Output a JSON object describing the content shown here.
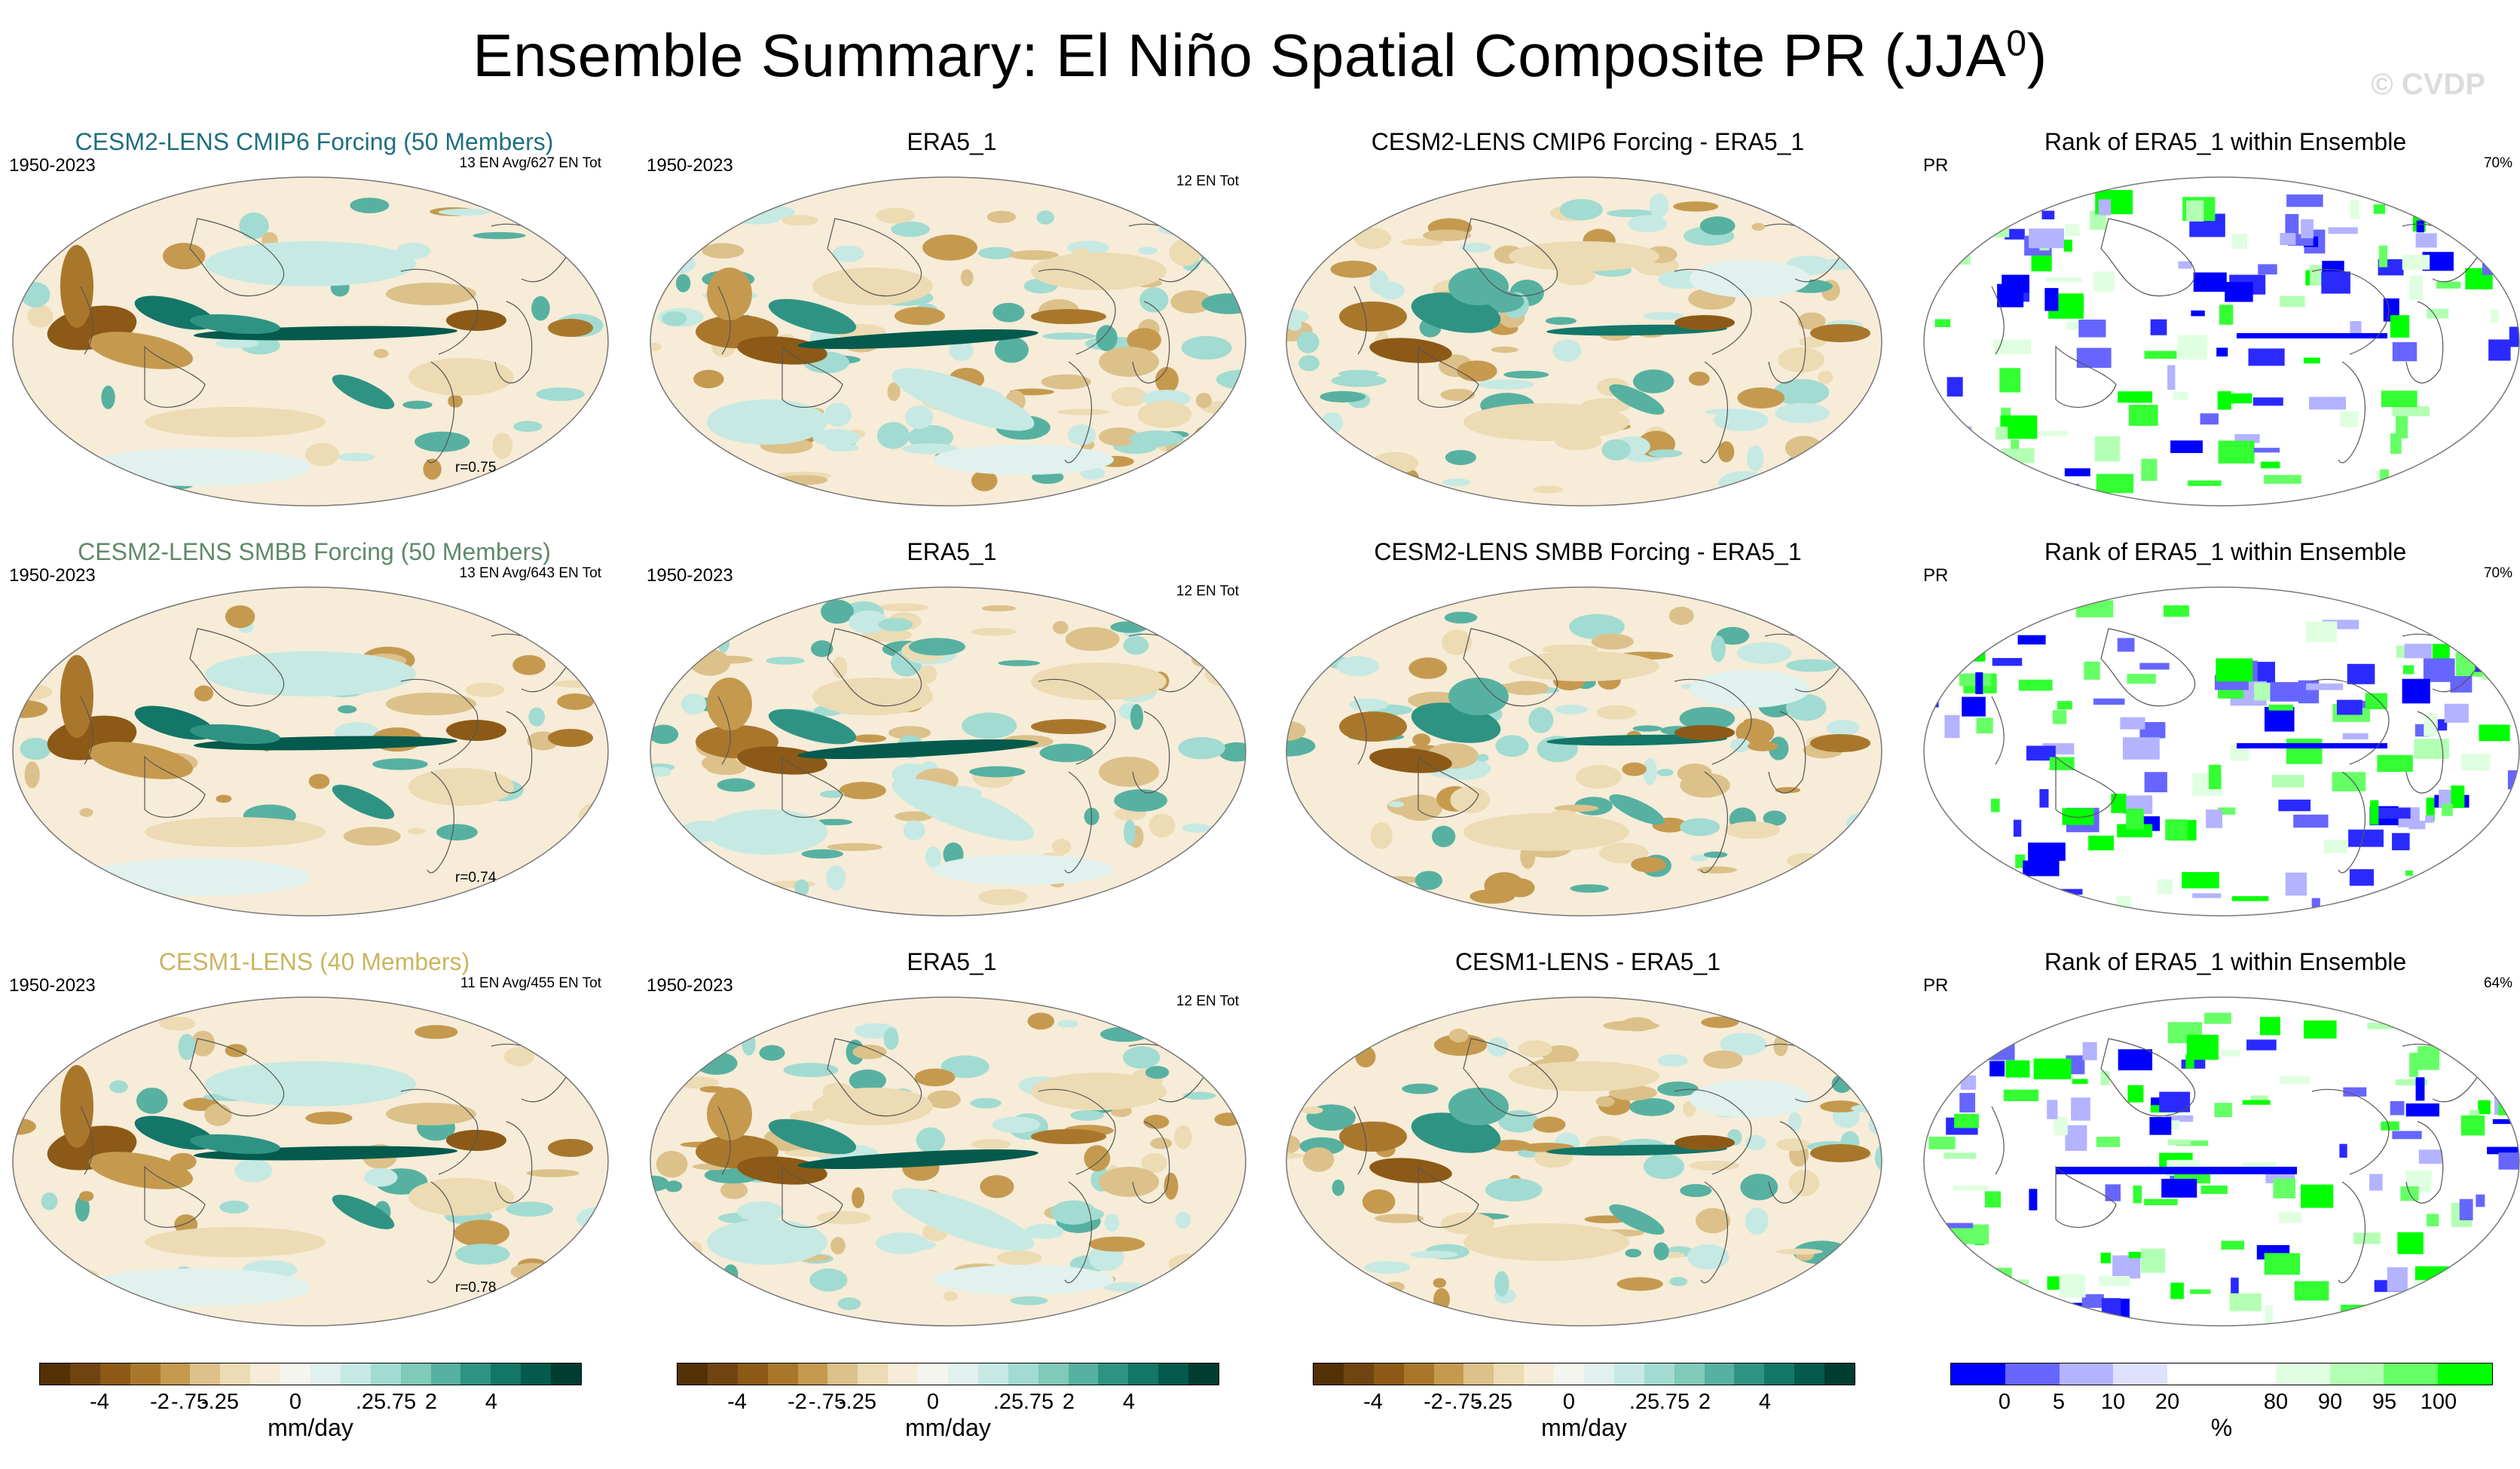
{
  "title": {
    "main": "Ensemble Summary: El Niño Spatial Composite PR (JJA",
    "sup": "0",
    "close": ")"
  },
  "watermark": "© CVDP",
  "rows": [
    {
      "model": {
        "title": "CESM2-LENS CMIP6 Forcing (50 Members)",
        "title_color": "#1f6f7e",
        "period": "1950-2023",
        "events": "13 EN Avg/627 EN Tot",
        "corr": "r=0.75"
      },
      "obs": {
        "title": "ERA5_1",
        "period": "1950-2023",
        "events": "12 EN Tot"
      },
      "diff": {
        "title": "CESM2-LENS CMIP6 Forcing - ERA5_1"
      },
      "rank": {
        "title": "Rank of ERA5_1 within Ensemble",
        "var": "PR",
        "pct": "70%"
      }
    },
    {
      "model": {
        "title": "CESM2-LENS SMBB Forcing (50 Members)",
        "title_color": "#5f8a6a",
        "period": "1950-2023",
        "events": "13 EN Avg/643 EN Tot",
        "corr": "r=0.74"
      },
      "obs": {
        "title": "ERA5_1",
        "period": "1950-2023",
        "events": "12 EN Tot"
      },
      "diff": {
        "title": "CESM2-LENS SMBB Forcing - ERA5_1"
      },
      "rank": {
        "title": "Rank of ERA5_1 within Ensemble",
        "var": "PR",
        "pct": "70%"
      }
    },
    {
      "model": {
        "title": "CESM1-LENS (40 Members)",
        "title_color": "#c9b560",
        "period": "1950-2023",
        "events": "11 EN Avg/455 EN Tot",
        "corr": "r=0.78"
      },
      "obs": {
        "title": "ERA5_1",
        "period": "1950-2023",
        "events": "12 EN Tot"
      },
      "diff": {
        "title": "CESM1-LENS - ERA5_1"
      },
      "rank": {
        "title": "Rank of ERA5_1 within Ensemble",
        "var": "PR",
        "pct": "64%"
      }
    }
  ],
  "colorbar_pr": {
    "colors": [
      "#543005",
      "#6f4410",
      "#8c5a16",
      "#a9772c",
      "#c59a4f",
      "#dcc18a",
      "#ecdbb3",
      "#f6ecd8",
      "#f5f5f0",
      "#e0f1ee",
      "#c6e9e3",
      "#a2dbd1",
      "#7fcab9",
      "#57b1a1",
      "#2f9384",
      "#137668",
      "#045a4c",
      "#003c30"
    ],
    "ticks": [
      "-4",
      "-2",
      "-.75",
      "-.25",
      "0",
      ".25",
      ".75",
      "2",
      "4"
    ],
    "unit": "mm/day"
  },
  "colorbar_rank": {
    "colors": [
      "#0000ff",
      "#6666ff",
      "#b3b3ff",
      "#e0e0ff",
      "#ffffff",
      "#ffffff",
      "#e0ffe0",
      "#b3ffb3",
      "#66ff66",
      "#00ff00"
    ],
    "ticks": [
      "0",
      "5",
      "10",
      "20",
      "80",
      "90",
      "95",
      "100"
    ],
    "unit": "%"
  }
}
